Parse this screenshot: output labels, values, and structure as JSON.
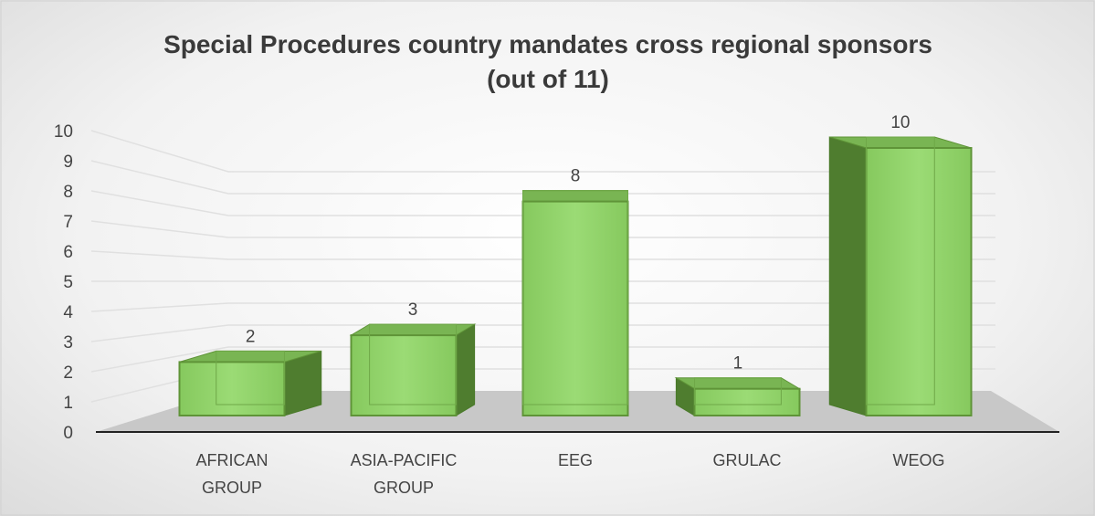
{
  "chart_data": {
    "type": "bar",
    "title": "Special Procedures country mandates cross regional sponsors (out of 11)",
    "categories": [
      "AFRICAN GROUP",
      "ASIA-PACIFIC GROUP",
      "EEG",
      "GRULAC",
      "WEOG"
    ],
    "values": [
      2,
      3,
      8,
      1,
      10
    ],
    "color": "#92d36e",
    "ylim": [
      0,
      10
    ],
    "yticks": [
      0,
      1,
      2,
      3,
      4,
      5,
      6,
      7,
      8,
      9,
      10
    ],
    "grid": true
  }
}
